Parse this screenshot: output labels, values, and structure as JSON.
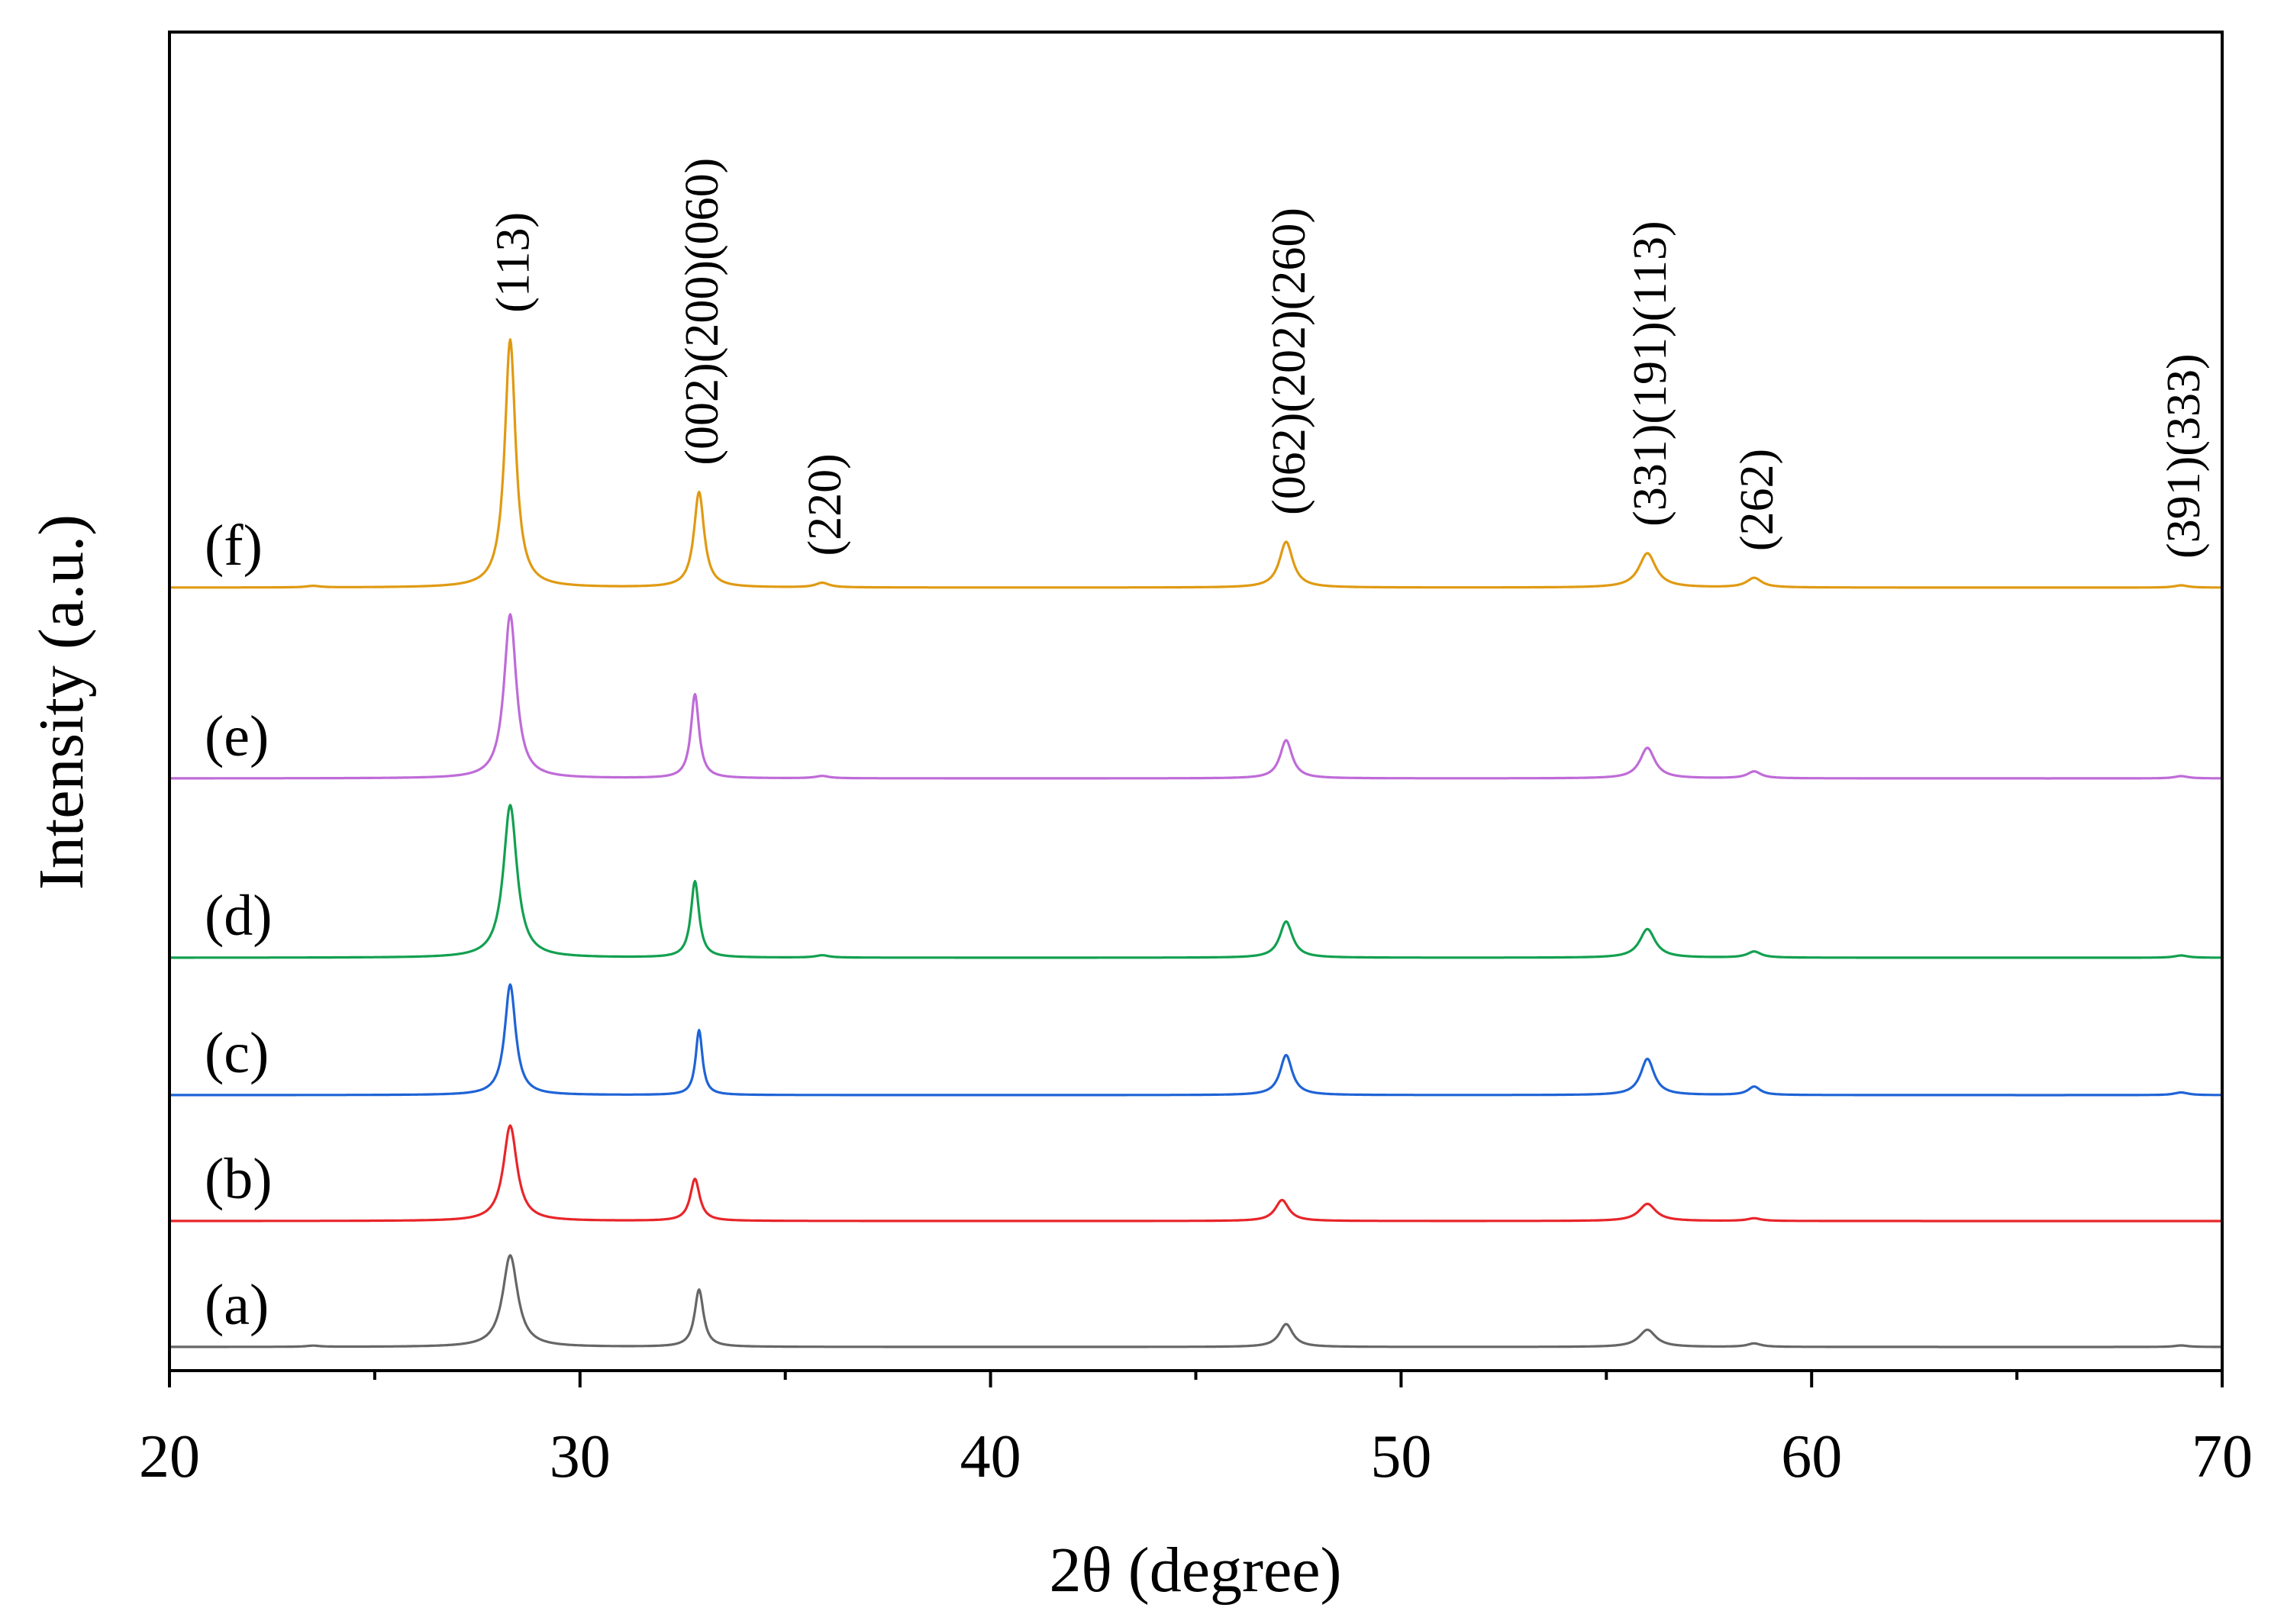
{
  "chart_data": {
    "type": "line",
    "title": "",
    "xlabel": "2θ (degree)",
    "ylabel": "Intensity (a.u.)",
    "xlim": [
      20,
      70
    ],
    "xticks": [
      20,
      30,
      40,
      50,
      60,
      70
    ],
    "xtick_labels": [
      "20",
      "30",
      "40",
      "50",
      "60",
      "70"
    ],
    "minor_xticks": [
      25,
      35,
      45,
      55,
      65
    ],
    "y_units": "arbitrary, curves vertically offset",
    "series": [
      {
        "name": "(a)",
        "color": "#666666",
        "baseline": 0,
        "peaks": [
          [
            28.3,
            24,
            0.22
          ],
          [
            32.9,
            15,
            0.13
          ],
          [
            47.2,
            6,
            0.2
          ],
          [
            56.0,
            4.5,
            0.25
          ],
          [
            58.6,
            0.9,
            0.2
          ],
          [
            69.0,
            0.4,
            0.2
          ],
          [
            23.5,
            0.3,
            0.2
          ]
        ]
      },
      {
        "name": "(b)",
        "color": "#e8252a",
        "baseline": 33,
        "peaks": [
          [
            28.3,
            25,
            0.2
          ],
          [
            32.8,
            11,
            0.14
          ],
          [
            47.1,
            5.5,
            0.2
          ],
          [
            56.0,
            4.5,
            0.25
          ],
          [
            58.6,
            0.7,
            0.2
          ]
        ]
      },
      {
        "name": "(c)",
        "color": "#1f63d6",
        "baseline": 66,
        "peaks": [
          [
            28.3,
            29,
            0.16
          ],
          [
            32.9,
            17,
            0.1
          ],
          [
            47.2,
            10.5,
            0.18
          ],
          [
            56.0,
            9.5,
            0.2
          ],
          [
            58.6,
            2.2,
            0.18
          ],
          [
            69.0,
            0.7,
            0.2
          ]
        ]
      },
      {
        "name": "(d)",
        "color": "#12a050",
        "baseline": 102,
        "peaks": [
          [
            28.3,
            40,
            0.2
          ],
          [
            32.8,
            20,
            0.12
          ],
          [
            47.2,
            9.5,
            0.19
          ],
          [
            56.0,
            7.5,
            0.23
          ],
          [
            58.6,
            1.6,
            0.2
          ],
          [
            69.0,
            0.6,
            0.2
          ],
          [
            35.9,
            0.6,
            0.2
          ]
        ]
      },
      {
        "name": "(e)",
        "color": "#bf6bd8",
        "baseline": 149,
        "peaks": [
          [
            28.3,
            43,
            0.18
          ],
          [
            32.8,
            22,
            0.12
          ],
          [
            47.2,
            10,
            0.18
          ],
          [
            56.0,
            8,
            0.22
          ],
          [
            58.6,
            1.8,
            0.2
          ],
          [
            69.0,
            0.6,
            0.2
          ],
          [
            35.9,
            0.6,
            0.2
          ]
        ]
      },
      {
        "name": "(f)",
        "color": "#e09a12",
        "baseline": 199,
        "peaks": [
          [
            28.3,
            65,
            0.16
          ],
          [
            32.9,
            25,
            0.15
          ],
          [
            35.9,
            1.2,
            0.2
          ],
          [
            47.2,
            12,
            0.2
          ],
          [
            56.0,
            9,
            0.25
          ],
          [
            58.6,
            2.5,
            0.22
          ],
          [
            69.0,
            0.6,
            0.2
          ],
          [
            23.5,
            0.4,
            0.2
          ]
        ]
      }
    ],
    "annotations": [
      {
        "text": "(113)",
        "x": 28.3
      },
      {
        "text": "(002)(200)(060)",
        "x": 32.9
      },
      {
        "text": "(220)",
        "x": 35.9
      },
      {
        "text": "(062)(202)(260)",
        "x": 47.2
      },
      {
        "text": "(331)(191)(113)",
        "x": 56.0
      },
      {
        "text": "(262)",
        "x": 58.6
      },
      {
        "text": "(391)(333)",
        "x": 69.0
      }
    ]
  }
}
